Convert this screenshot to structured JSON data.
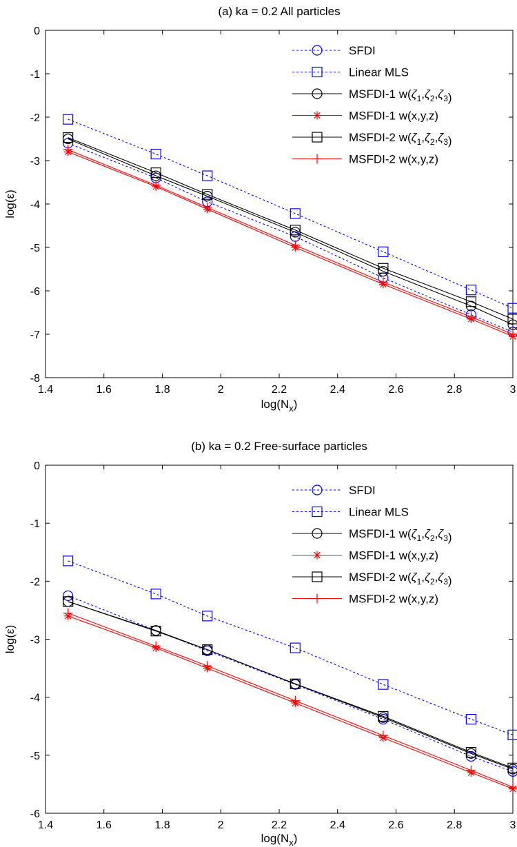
{
  "chart_data": [
    {
      "type": "line",
      "title": "(a) ka = 0.2 All particles",
      "xlabel": "log(N",
      "xlabel_sub": "x",
      "xlabel_close": ")",
      "ylabel": "log(ε)",
      "xlim": [
        1.4,
        3.0
      ],
      "ylim": [
        -8,
        0
      ],
      "xticks": [
        "1.4",
        "1.6",
        "1.8",
        "2",
        "2.2",
        "2.4",
        "2.6",
        "2.8",
        "3"
      ],
      "yticks": [
        "0",
        "-1",
        "-2",
        "-3",
        "-4",
        "-5",
        "-6",
        "-7",
        "-8"
      ],
      "legend_position": "top-right",
      "x": [
        1.477,
        1.778,
        1.954,
        2.255,
        2.556,
        2.857,
        3.0
      ],
      "series": [
        {
          "name": "SFDI",
          "color": "#0000ff",
          "line": "dotted",
          "marker": "circle",
          "values": [
            -2.6,
            -3.4,
            -3.95,
            -4.75,
            -5.7,
            -6.55,
            -6.95
          ]
        },
        {
          "name": "Linear MLS",
          "color": "#0000ff",
          "line": "dotted",
          "marker": "square",
          "values": [
            -2.05,
            -2.85,
            -3.35,
            -4.22,
            -5.1,
            -5.98,
            -6.4
          ]
        },
        {
          "name_prefix": "MSFDI-1 w(",
          "name_vars": "zeta",
          "name_suffix": ")",
          "color": "#000000",
          "line": "solid",
          "marker": "circle",
          "values": [
            -2.5,
            -3.35,
            -3.82,
            -4.65,
            -5.55,
            -6.35,
            -6.78
          ]
        },
        {
          "name": "MSFDI-1 w(x,y,z)",
          "color": "#ff0000",
          "line": "solid",
          "marker": "star",
          "values": [
            -2.8,
            -3.6,
            -4.12,
            -5.0,
            -5.85,
            -6.65,
            -7.05
          ]
        },
        {
          "name_prefix": "MSFDI-2 w(",
          "name_vars": "zeta",
          "name_suffix": ")",
          "color": "#000000",
          "line": "solid",
          "marker": "square",
          "values": [
            -2.47,
            -3.28,
            -3.78,
            -4.6,
            -5.48,
            -6.25,
            -6.65
          ]
        },
        {
          "name": "MSFDI-2 w(x,y,z)",
          "color": "#ff0000",
          "line": "solid",
          "marker": "plus",
          "values": [
            -2.75,
            -3.57,
            -4.08,
            -4.95,
            -5.8,
            -6.6,
            -7.0
          ]
        }
      ]
    },
    {
      "type": "line",
      "title": "(b) ka = 0.2 Free-surface particles",
      "xlabel": "log(N",
      "xlabel_sub": "x",
      "xlabel_close": ")",
      "ylabel": "log(ε)",
      "xlim": [
        1.4,
        3.0
      ],
      "ylim": [
        -6,
        0
      ],
      "xticks": [
        "1.4",
        "1.6",
        "1.8",
        "2",
        "2.2",
        "2.4",
        "2.6",
        "2.8",
        "3"
      ],
      "yticks": [
        "0",
        "-1",
        "-2",
        "-3",
        "-4",
        "-5",
        "-6"
      ],
      "legend_position": "top-right",
      "x": [
        1.477,
        1.778,
        1.954,
        2.255,
        2.556,
        2.857,
        3.0
      ],
      "series": [
        {
          "name": "SFDI",
          "color": "#0000ff",
          "line": "dotted",
          "marker": "circle",
          "values": [
            -2.25,
            -2.85,
            -3.2,
            -3.78,
            -4.38,
            -5.02,
            -5.28
          ]
        },
        {
          "name": "Linear MLS",
          "color": "#0000ff",
          "line": "dotted",
          "marker": "square",
          "values": [
            -1.65,
            -2.22,
            -2.6,
            -3.15,
            -3.78,
            -4.38,
            -4.65
          ]
        },
        {
          "name_prefix": "MSFDI-1 w(",
          "name_vars": "zeta",
          "name_suffix": ")",
          "color": "#000000",
          "line": "solid",
          "marker": "circle",
          "values": [
            -2.35,
            -2.85,
            -3.18,
            -3.77,
            -4.35,
            -4.97,
            -5.24
          ]
        },
        {
          "name": "MSFDI-1 w(x,y,z)",
          "color": "#ff0000",
          "line": "solid",
          "marker": "star",
          "values": [
            -2.6,
            -3.15,
            -3.5,
            -4.1,
            -4.7,
            -5.3,
            -5.58
          ]
        },
        {
          "name_prefix": "MSFDI-2 w(",
          "name_vars": "zeta",
          "name_suffix": ")",
          "color": "#000000",
          "line": "solid",
          "marker": "square",
          "values": [
            -2.35,
            -2.86,
            -3.18,
            -3.77,
            -4.33,
            -4.95,
            -5.22
          ]
        },
        {
          "name": "MSFDI-2 w(x,y,z)",
          "color": "#ff0000",
          "line": "solid",
          "marker": "plus",
          "values": [
            -2.55,
            -3.12,
            -3.46,
            -4.06,
            -4.66,
            -5.26,
            -5.55
          ]
        }
      ]
    }
  ]
}
